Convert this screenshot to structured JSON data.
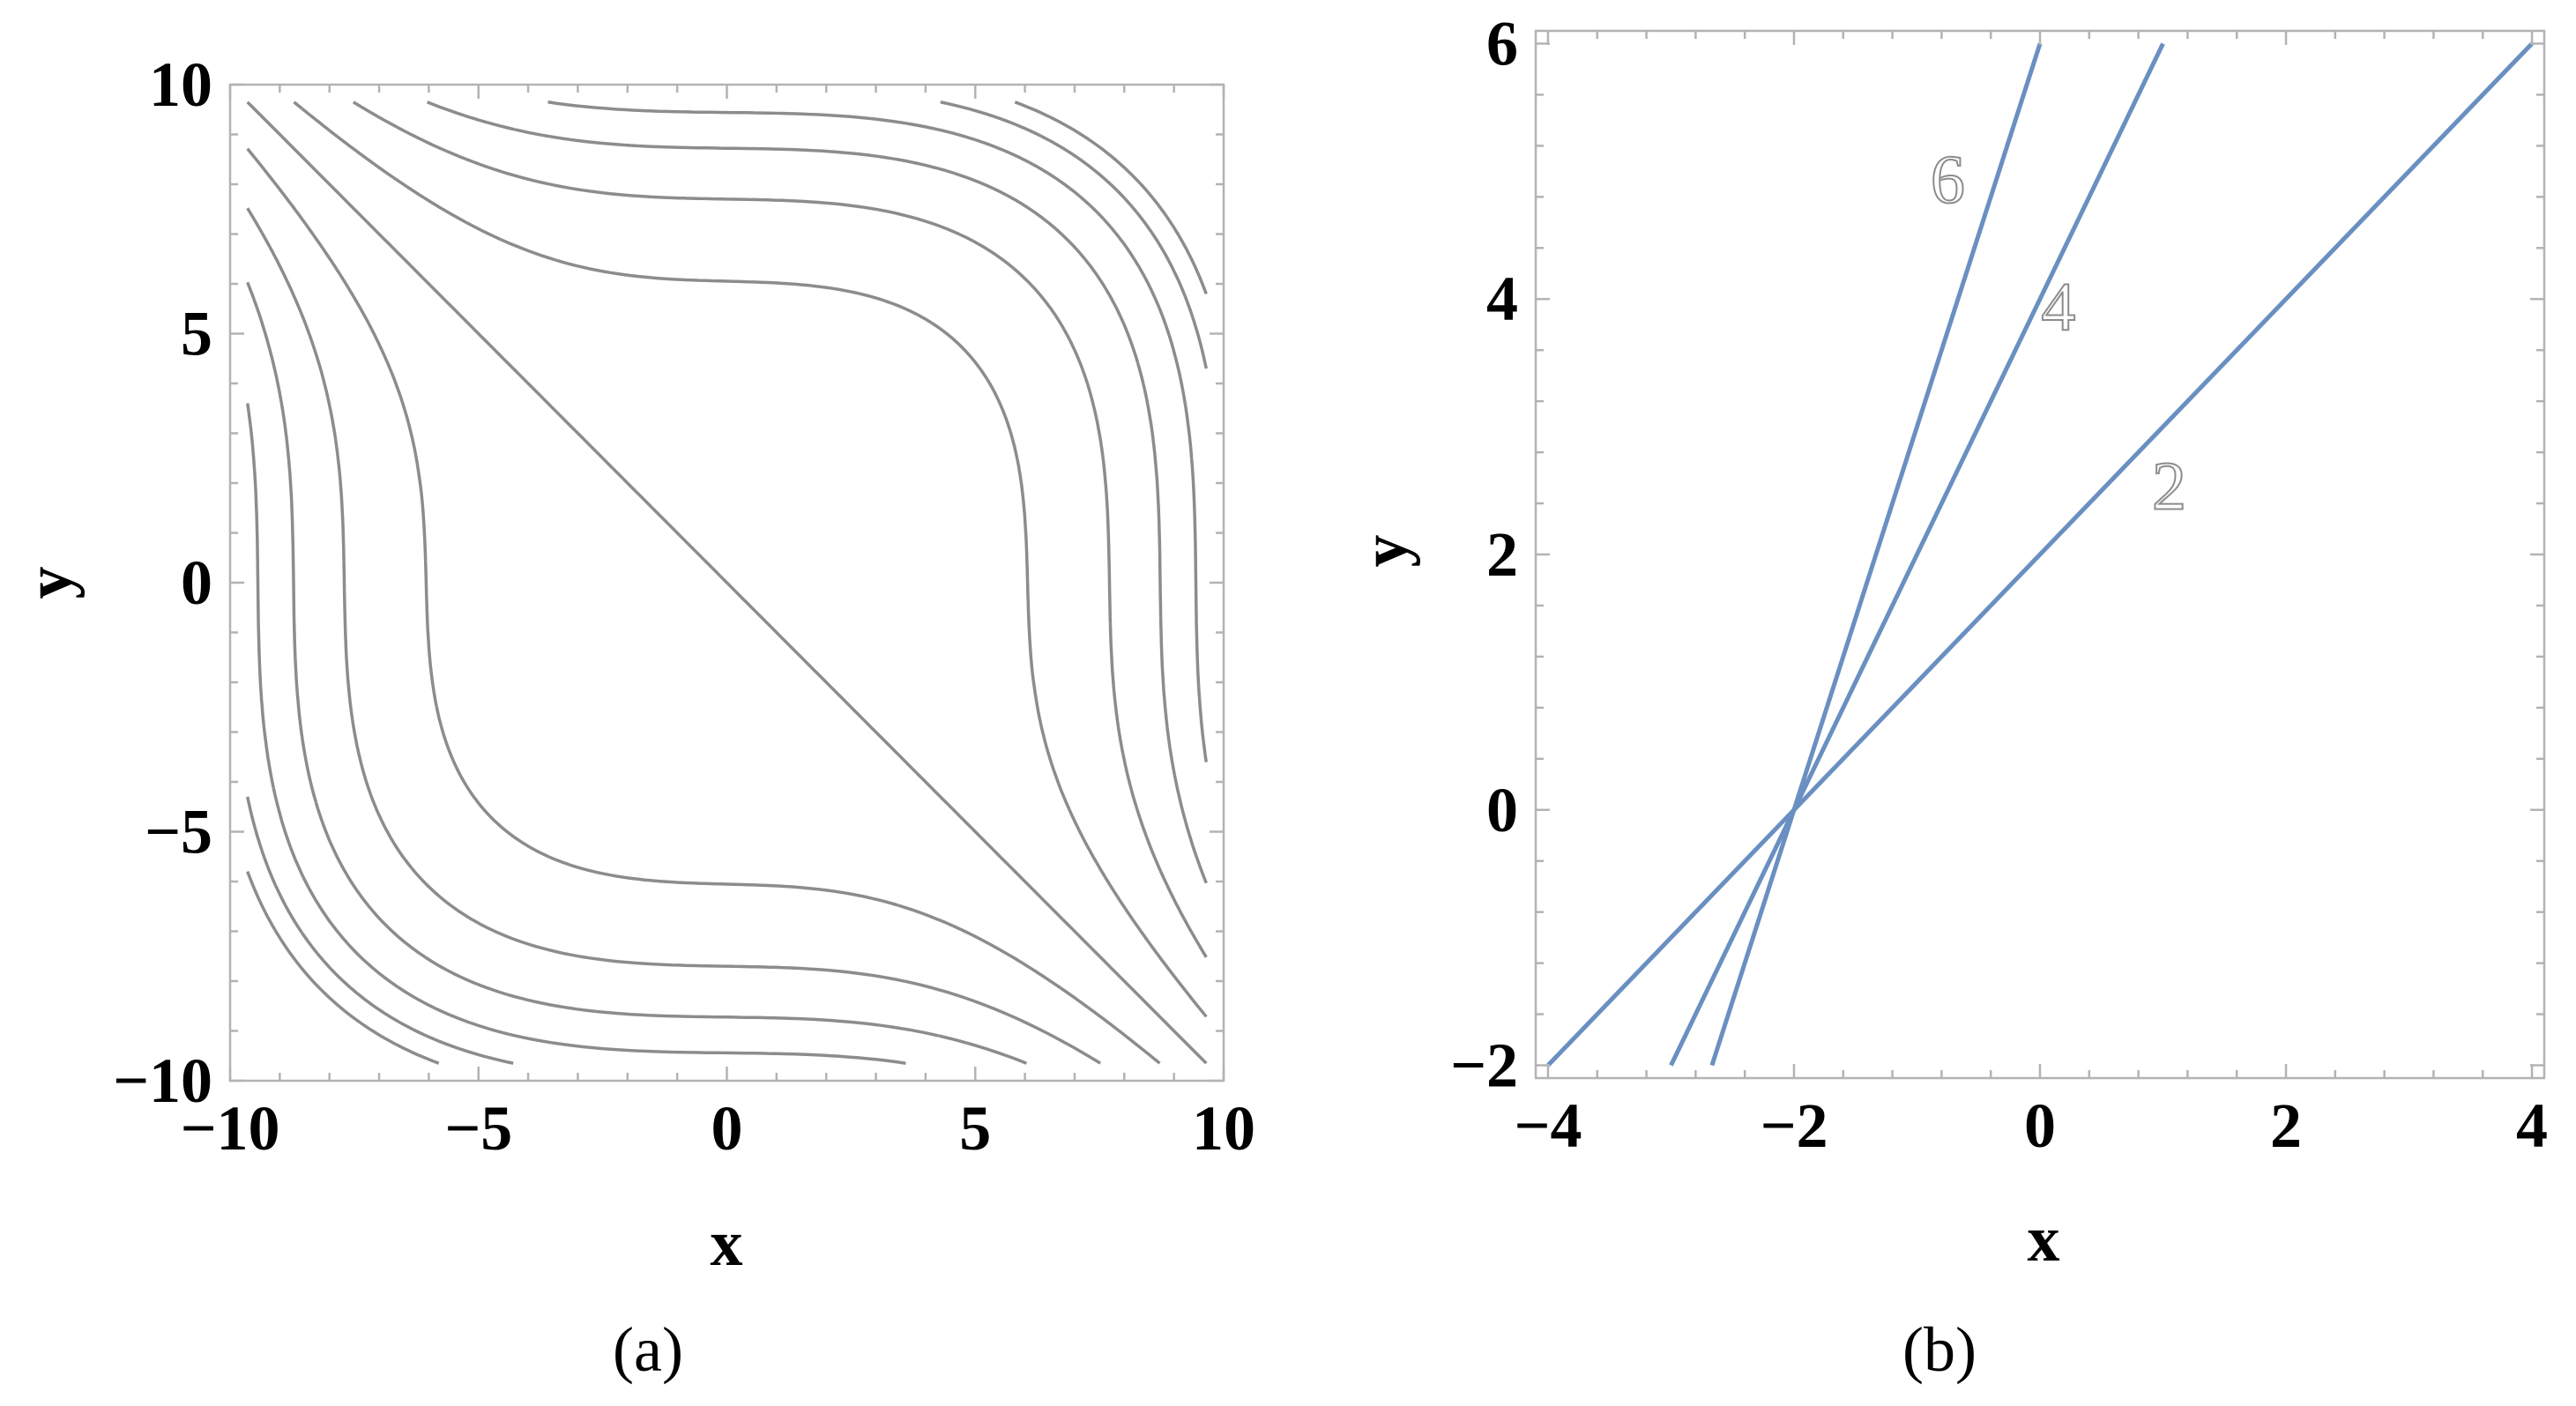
{
  "chart_data": [
    {
      "type": "contour",
      "caption": "(a)",
      "xlabel": "x",
      "ylabel": "y",
      "xlim": [
        -10,
        10
      ],
      "ylim": [
        -10,
        10
      ],
      "xticks": [
        -10,
        -5,
        0,
        5,
        10
      ],
      "yticks": [
        -10,
        -5,
        0,
        5,
        10
      ],
      "x_tick_labels": [
        "−10",
        "−5",
        "0",
        "5",
        "10"
      ],
      "y_tick_labels": [
        "−10",
        "−5",
        "0",
        "5",
        "10"
      ],
      "grid": false,
      "line_color": "#8c8c8c",
      "function": "x^3/3 + y^3/3 + x + y",
      "contour_levels": [
        0,
        80,
        160,
        230,
        290,
        340,
        380,
        -80,
        -160,
        -230,
        -290,
        -340,
        -380
      ]
    },
    {
      "type": "line",
      "caption": "(b)",
      "xlabel": "x",
      "ylabel": "y",
      "xlim": [
        -4.1,
        4.1
      ],
      "ylim": [
        -2.1,
        6.1
      ],
      "xticks": [
        -4,
        -2,
        0,
        2,
        4
      ],
      "yticks": [
        -2,
        0,
        2,
        4,
        6
      ],
      "x_tick_labels": [
        "−4",
        "−2",
        "0",
        "2",
        "4"
      ],
      "y_tick_labels": [
        "−2",
        "0",
        "2",
        "4",
        "6"
      ],
      "grid": false,
      "line_color": "#6a8fc1",
      "series": [
        {
          "name": "2",
          "points": [
            [
              -4,
              -2
            ],
            [
              4,
              6
            ]
          ],
          "label_at": [
            1.05,
            2.55
          ]
        },
        {
          "name": "4",
          "points": [
            [
              -3,
              -2
            ],
            [
              1,
              6
            ]
          ],
          "label_at": [
            0.15,
            3.95
          ]
        },
        {
          "name": "6",
          "points": [
            [
              -2.667,
              -2
            ],
            [
              0,
              6
            ]
          ],
          "label_at": [
            -0.75,
            4.95
          ]
        }
      ]
    }
  ]
}
